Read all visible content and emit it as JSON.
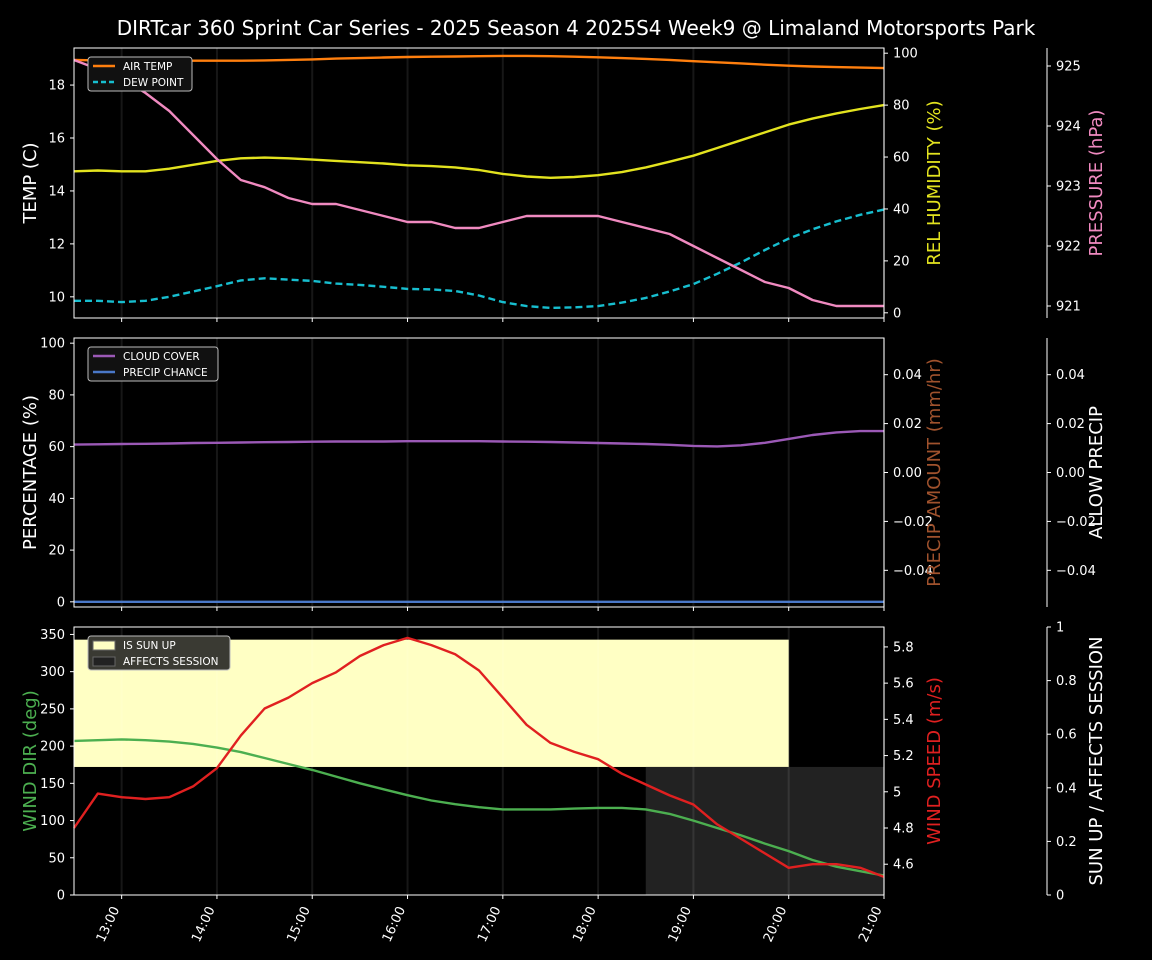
{
  "title": "DIRTcar 360 Sprint Car Series - 2025 Season 4 2025S4 Week9 @ Limaland Motorsports Park",
  "x_ticks": [
    "13:00",
    "14:00",
    "15:00",
    "16:00",
    "17:00",
    "18:00",
    "19:00",
    "20:00",
    "21:00"
  ],
  "chart_data": [
    {
      "type": "line",
      "panel": "weather",
      "x_range": [
        "12:30",
        "21:00"
      ],
      "x": [
        "12:30",
        "12:45",
        "13:00",
        "13:15",
        "13:30",
        "13:45",
        "14:00",
        "14:15",
        "14:30",
        "14:45",
        "15:00",
        "15:15",
        "15:30",
        "15:45",
        "16:00",
        "16:15",
        "16:30",
        "16:45",
        "17:00",
        "17:15",
        "17:30",
        "17:45",
        "18:00",
        "18:15",
        "18:30",
        "18:45",
        "19:00",
        "19:15",
        "19:30",
        "19:45",
        "20:00",
        "20:15",
        "20:30",
        "20:45",
        "21:00"
      ],
      "axes": {
        "left": {
          "label": "TEMP (C)",
          "ylim": [
            9.2,
            19.4
          ],
          "ticks": [
            10,
            12,
            14,
            16,
            18
          ],
          "color": "#ffffff"
        },
        "right1": {
          "label": "REL HUMIDITY (%)",
          "ylim": [
            -2,
            102
          ],
          "ticks": [
            0,
            20,
            40,
            60,
            80,
            100
          ],
          "color": "#e3e31f"
        },
        "right2": {
          "label": "PRESSURE (hPa)",
          "ylim": [
            920.8,
            925.3
          ],
          "ticks": [
            921,
            922,
            923,
            924,
            925
          ],
          "color": "#f08ac0"
        }
      },
      "legend": {
        "position": "top-left",
        "entries": [
          "AIR TEMP",
          "DEW POINT"
        ]
      },
      "series": [
        {
          "name": "AIR TEMP",
          "axis": "left",
          "color": "#ff7f0e",
          "style": "solid",
          "values": [
            18.95,
            18.93,
            18.92,
            18.92,
            18.92,
            18.92,
            18.92,
            18.92,
            18.93,
            18.95,
            18.97,
            19.0,
            19.02,
            19.04,
            19.06,
            19.07,
            19.08,
            19.09,
            19.1,
            19.1,
            19.09,
            19.07,
            19.05,
            19.02,
            18.99,
            18.95,
            18.9,
            18.86,
            18.82,
            18.77,
            18.73,
            18.7,
            18.68,
            18.66,
            18.64
          ]
        },
        {
          "name": "DEW POINT",
          "axis": "left",
          "color": "#17becf",
          "style": "dashed",
          "values": [
            9.85,
            9.85,
            9.8,
            9.85,
            10.0,
            10.2,
            10.4,
            10.62,
            10.7,
            10.65,
            10.6,
            10.5,
            10.45,
            10.38,
            10.3,
            10.28,
            10.22,
            10.05,
            9.8,
            9.65,
            9.58,
            9.6,
            9.65,
            9.78,
            9.96,
            10.2,
            10.48,
            10.87,
            11.3,
            11.77,
            12.2,
            12.55,
            12.85,
            13.1,
            13.3
          ]
        },
        {
          "axis": "right1",
          "color": "#e3e31f",
          "style": "solid",
          "values": [
            54.5,
            54.8,
            54.5,
            54.5,
            55.5,
            57,
            58.5,
            59.5,
            59.8,
            59.5,
            59,
            58.5,
            58,
            57.5,
            56.8,
            56.5,
            56,
            55,
            53.5,
            52.5,
            52,
            52.3,
            53,
            54.2,
            56,
            58.2,
            60.5,
            63.5,
            66.5,
            69.5,
            72.5,
            74.8,
            76.8,
            78.5,
            80
          ]
        },
        {
          "axis": "right2",
          "color": "#f08ac0",
          "style": "solid",
          "values": [
            925.1,
            924.95,
            924.8,
            924.55,
            924.25,
            923.85,
            923.45,
            923.1,
            922.98,
            922.8,
            922.7,
            922.7,
            922.6,
            922.5,
            922.4,
            922.4,
            922.3,
            922.3,
            922.4,
            922.5,
            922.5,
            922.5,
            922.5,
            922.4,
            922.3,
            922.2,
            922.0,
            921.8,
            921.6,
            921.4,
            921.3,
            921.1,
            921.0,
            921.0,
            921.0
          ]
        }
      ]
    },
    {
      "type": "line",
      "panel": "precip",
      "x_range": [
        "12:30",
        "21:00"
      ],
      "x": [
        "12:30",
        "12:45",
        "13:00",
        "13:15",
        "13:30",
        "13:45",
        "14:00",
        "14:15",
        "14:30",
        "14:45",
        "15:00",
        "15:15",
        "15:30",
        "15:45",
        "16:00",
        "16:15",
        "16:30",
        "16:45",
        "17:00",
        "17:15",
        "17:30",
        "17:45",
        "18:00",
        "18:15",
        "18:30",
        "18:45",
        "19:00",
        "19:15",
        "19:30",
        "19:45",
        "20:00",
        "20:15",
        "20:30",
        "20:45",
        "21:00"
      ],
      "axes": {
        "left": {
          "label": "PERCENTAGE (%)",
          "ylim": [
            -2,
            102
          ],
          "ticks": [
            0,
            20,
            40,
            60,
            80,
            100
          ],
          "color": "#ffffff"
        },
        "right1": {
          "label": "PRECIP AMOUNT (mm/hr)",
          "ylim": [
            -0.055,
            0.055
          ],
          "ticks": [
            -0.04,
            -0.02,
            0.0,
            0.02,
            0.04
          ],
          "tick_labels": [
            "−0.04",
            "−0.02",
            "0.00",
            "0.02",
            "0.04"
          ],
          "color": "#a0522d"
        },
        "right2": {
          "label": "ALLOW PRECIP",
          "ylim": [
            -0.055,
            0.055
          ],
          "ticks": [
            -0.04,
            -0.02,
            0.0,
            0.02,
            0.04
          ],
          "tick_labels": [
            "−0.04",
            "−0.02",
            "0.00",
            "0.02",
            "0.04"
          ],
          "color": "#ffffff"
        }
      },
      "legend": {
        "position": "top-left",
        "entries": [
          "CLOUD COVER",
          "PRECIP CHANCE"
        ]
      },
      "series": [
        {
          "name": "CLOUD COVER",
          "axis": "left",
          "color": "#9b59b6",
          "values": [
            60.8,
            60.9,
            61,
            61.1,
            61.2,
            61.4,
            61.5,
            61.6,
            61.7,
            61.8,
            61.9,
            62,
            62,
            62,
            62.1,
            62.1,
            62.1,
            62.1,
            62,
            61.9,
            61.8,
            61.6,
            61.4,
            61.2,
            61,
            60.7,
            60.3,
            60.1,
            60.5,
            61.5,
            63,
            64.5,
            65.5,
            66,
            66
          ]
        },
        {
          "name": "PRECIP CHANCE",
          "axis": "left",
          "color": "#4a78c8",
          "values": [
            0,
            0,
            0,
            0,
            0,
            0,
            0,
            0,
            0,
            0,
            0,
            0,
            0,
            0,
            0,
            0,
            0,
            0,
            0,
            0,
            0,
            0,
            0,
            0,
            0,
            0,
            0,
            0,
            0,
            0,
            0,
            0,
            0,
            0,
            0
          ]
        }
      ]
    },
    {
      "type": "line",
      "panel": "wind",
      "x_range": [
        "12:30",
        "21:00"
      ],
      "x": [
        "12:30",
        "12:45",
        "13:00",
        "13:15",
        "13:30",
        "13:45",
        "14:00",
        "14:15",
        "14:30",
        "14:45",
        "15:00",
        "15:15",
        "15:30",
        "15:45",
        "16:00",
        "16:15",
        "16:30",
        "16:45",
        "17:00",
        "17:15",
        "17:30",
        "17:45",
        "18:00",
        "18:15",
        "18:30",
        "18:45",
        "19:00",
        "19:15",
        "19:30",
        "19:45",
        "20:00",
        "20:15",
        "20:30",
        "20:45",
        "21:00"
      ],
      "axes": {
        "left": {
          "label": "WIND DIR (deg)",
          "ylim": [
            0,
            360
          ],
          "ticks": [
            0,
            50,
            100,
            150,
            200,
            250,
            300,
            350
          ],
          "color": "#4caf50"
        },
        "right1": {
          "label": "WIND SPEED (m/s)",
          "ylim": [
            4.43,
            5.91
          ],
          "ticks": [
            4.6,
            4.8,
            5.0,
            5.2,
            5.4,
            5.6,
            5.8
          ],
          "color": "#e02020"
        },
        "right2": {
          "label": "SUN UP / AFFECTS SESSION",
          "ylim": [
            0,
            1.0
          ],
          "ticks": [
            0.0,
            0.2,
            0.4,
            0.6,
            0.8,
            1.0
          ],
          "color": "#ffffff"
        }
      },
      "legend": {
        "position": "top-left",
        "entries": [
          "IS SUN UP",
          "AFFECTS SESSION"
        ]
      },
      "areas": [
        {
          "name": "IS SUN UP",
          "axis": "left",
          "color": "#ffffc4",
          "x_start": "12:30",
          "x_end": "20:00",
          "y_low": 172,
          "y_high": 343
        },
        {
          "name": "AFFECTS SESSION",
          "axis": "left",
          "color": "#222222",
          "x_start": "18:30",
          "x_end": "21:00",
          "y_low": 0,
          "y_high": 172
        }
      ],
      "series": [
        {
          "axis": "left",
          "color": "#4caf50",
          "values": [
            207,
            208,
            209,
            208,
            206,
            203,
            198,
            192,
            184,
            176,
            168,
            159,
            150,
            142,
            134,
            127,
            122,
            118,
            115,
            115,
            115,
            116,
            117,
            117,
            115,
            109,
            100,
            90,
            80,
            69,
            59,
            47,
            38,
            32,
            26
          ]
        },
        {
          "axis": "right1",
          "color": "#e02020",
          "values": [
            4.8,
            4.99,
            4.97,
            4.96,
            4.97,
            5.03,
            5.13,
            5.31,
            5.46,
            5.52,
            5.6,
            5.66,
            5.75,
            5.81,
            5.85,
            5.81,
            5.76,
            5.67,
            5.52,
            5.37,
            5.27,
            5.22,
            5.18,
            5.1,
            5.04,
            4.98,
            4.93,
            4.82,
            4.74,
            4.66,
            4.58,
            4.6,
            4.6,
            4.58,
            4.53
          ]
        }
      ]
    }
  ]
}
